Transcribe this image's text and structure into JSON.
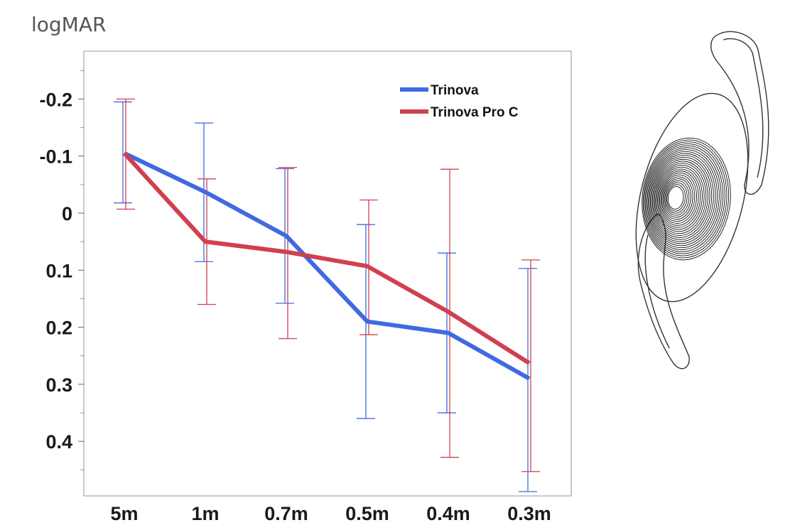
{
  "chart_data": {
    "type": "line",
    "ylabel": "logMAR",
    "categories": [
      "5m",
      "1m",
      "0.7m",
      "0.5m",
      "0.4m",
      "0.3m"
    ],
    "ylim": [
      -0.29,
      0.49
    ],
    "y_inverted": true,
    "yticks": [
      -0.2,
      -0.1,
      0,
      0.1,
      0.2,
      0.3,
      0.4
    ],
    "ytick_labels": [
      "-0.2",
      "-0.1",
      "0",
      "0.1",
      "0.2",
      "0.3",
      "0.4"
    ],
    "grid": false,
    "legend_position": "top-right",
    "series": [
      {
        "name": "Trinova",
        "color": "#4169e1",
        "values": [
          -0.105,
          -0.037,
          0.04,
          0.19,
          0.21,
          0.29
        ],
        "error_low": [
          -0.195,
          -0.158,
          -0.078,
          0.02,
          0.07,
          0.097
        ],
        "error_high": [
          -0.018,
          0.085,
          0.158,
          0.36,
          0.35,
          0.488
        ]
      },
      {
        "name": "Trinova Pro C",
        "color": "#d0404f",
        "values": [
          -0.105,
          0.05,
          0.068,
          0.093,
          0.173,
          0.263
        ],
        "error_low": [
          -0.2,
          -0.06,
          -0.08,
          -0.023,
          -0.077,
          0.082
        ],
        "error_high": [
          -0.007,
          0.16,
          0.22,
          0.213,
          0.428,
          0.453
        ]
      }
    ]
  },
  "illustration": {
    "name": "intraocular-lens-drawing"
  }
}
